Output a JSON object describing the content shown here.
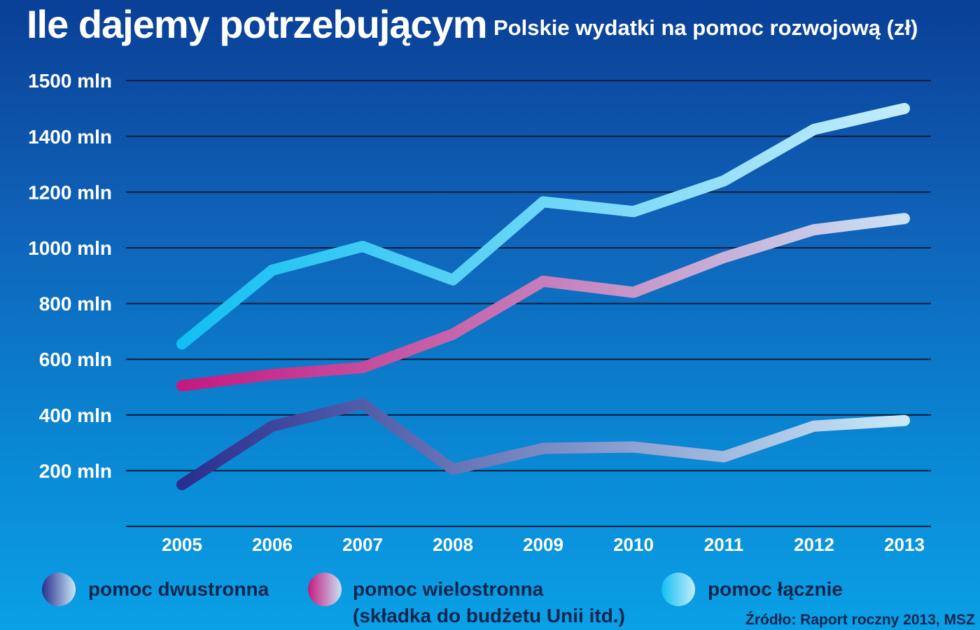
{
  "header": {
    "title": "Ile dajemy potrzebującym",
    "subtitle": "Polskie wydatki na pomoc rozwojową (zł)"
  },
  "chart_data": {
    "type": "line",
    "title": "Ile dajemy potrzebującym",
    "subtitle": "Polskie wydatki na pomoc rozwojową (zł)",
    "xlabel": "",
    "ylabel": "",
    "categories": [
      "2005",
      "2006",
      "2007",
      "2008",
      "2009",
      "2010",
      "2011",
      "2012",
      "2013"
    ],
    "y_ticks": [
      {
        "value": 200,
        "label": "200 mln"
      },
      {
        "value": 400,
        "label": "400 mln"
      },
      {
        "value": 600,
        "label": "600 mln"
      },
      {
        "value": 800,
        "label": "800 mln"
      },
      {
        "value": 1000,
        "label": "1000 mln"
      },
      {
        "value": 1200,
        "label": "1200 mln"
      },
      {
        "value": 1400,
        "label": "1400 mln"
      },
      {
        "value": 1500,
        "label": "1500 mln"
      }
    ],
    "ylim": [
      0,
      1600
    ],
    "grid": true,
    "legend_position": "bottom",
    "series": [
      {
        "name": "pomoc łącznie",
        "colors": [
          "#12bff2",
          "#c4ecfb"
        ],
        "values": [
          655,
          920,
          1005,
          885,
          1165,
          1130,
          1240,
          1425,
          1500
        ]
      },
      {
        "name": "pomoc wielostronna (składka do budżetu Unii itd.)",
        "colors": [
          "#c4197f",
          "#c9e2f5"
        ],
        "values": [
          505,
          545,
          570,
          690,
          880,
          840,
          965,
          1065,
          1105
        ]
      },
      {
        "name": "pomoc dwustronna",
        "colors": [
          "#2a2e8f",
          "#c9e8f8"
        ],
        "values": [
          150,
          360,
          440,
          205,
          280,
          285,
          250,
          360,
          380
        ]
      }
    ]
  },
  "legend": {
    "items": [
      {
        "line1": "pomoc dwustronna",
        "line2": "",
        "colors": [
          "#2a2e8f",
          "#c9e8f8"
        ]
      },
      {
        "line1": "pomoc wielostronna",
        "line2": "(składka do budżetu Unii itd.)",
        "colors": [
          "#c4197f",
          "#c9e2f5"
        ]
      },
      {
        "line1": "pomoc łącznie",
        "line2": "",
        "colors": [
          "#12bff2",
          "#c4ecfb"
        ]
      }
    ]
  },
  "source": "Źródło: Raport roczny 2013, MSZ"
}
